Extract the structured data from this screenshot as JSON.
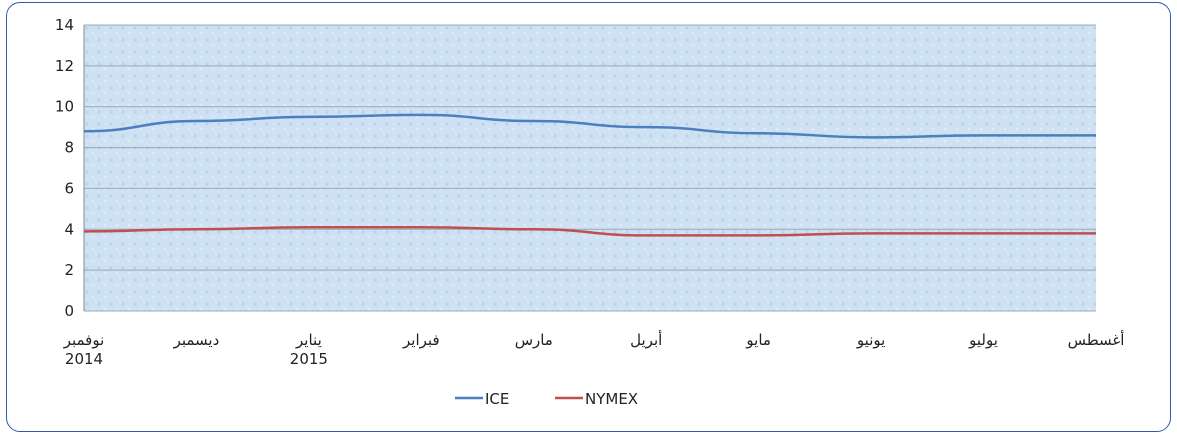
{
  "chart_data": {
    "type": "line",
    "categories": [
      [
        "نوفمبر",
        "2014"
      ],
      [
        "ديسمبر"
      ],
      [
        "يناير",
        "2015"
      ],
      [
        "فبراير"
      ],
      [
        "مارس"
      ],
      [
        "أبريل"
      ],
      [
        "مايو"
      ],
      [
        "يونيو"
      ],
      [
        "يوليو"
      ],
      [
        "أغسطس"
      ]
    ],
    "series": [
      {
        "name": "ICE",
        "color": "#4a7fc0",
        "values": [
          8.8,
          9.3,
          9.5,
          9.6,
          9.3,
          9.0,
          8.7,
          8.5,
          8.6,
          8.6
        ]
      },
      {
        "name": "NYMEX",
        "color": "#c0504d",
        "values": [
          3.9,
          4.0,
          4.1,
          4.1,
          4.0,
          3.7,
          3.7,
          3.8,
          3.8,
          3.8
        ]
      }
    ],
    "ylim": [
      0,
      14
    ],
    "yticks": [
      0,
      2,
      4,
      6,
      8,
      10,
      12,
      14
    ],
    "grid": true,
    "legend": "bottom"
  }
}
